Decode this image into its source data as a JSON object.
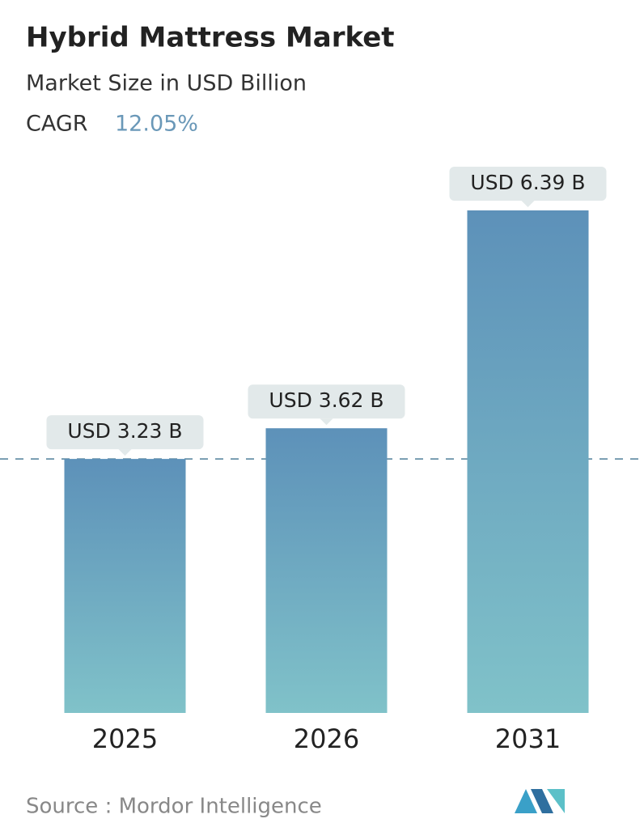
{
  "chart_data": {
    "type": "bar",
    "title": "Hybrid Mattress Market",
    "subtitle": "Market Size in USD Billion",
    "cagr_label": "CAGR",
    "cagr_value": "12.05%",
    "categories": [
      "2025",
      "2026",
      "2031"
    ],
    "values": [
      3.23,
      3.62,
      6.39
    ],
    "value_labels": [
      "USD 3.23 B",
      "USD 3.62 B",
      "USD 6.39 B"
    ],
    "colors": [
      "#5d91b9",
      "#80c2c9"
    ],
    "reference_line": true,
    "source": "Source :  Mordor Intelligence"
  }
}
